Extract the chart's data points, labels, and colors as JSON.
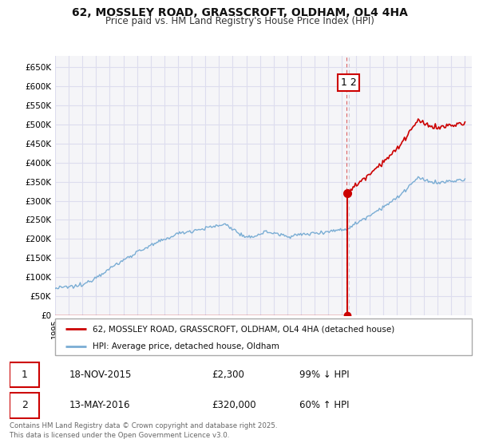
{
  "title": "62, MOSSLEY ROAD, GRASSCROFT, OLDHAM, OL4 4HA",
  "subtitle": "Price paid vs. HM Land Registry's House Price Index (HPI)",
  "hpi_color": "#7aadd4",
  "price_color": "#cc0000",
  "marker_color": "#cc0000",
  "bg_color": "#f5f5f8",
  "grid_color": "#ddddee",
  "ylim": [
    0,
    680000
  ],
  "yticks": [
    0,
    50000,
    100000,
    150000,
    200000,
    250000,
    300000,
    350000,
    400000,
    450000,
    500000,
    550000,
    600000,
    650000
  ],
  "transaction1_date": "18-NOV-2015",
  "transaction1_price": 2300,
  "transaction1_hpi": "99% ↓ HPI",
  "transaction2_date": "13-MAY-2016",
  "transaction2_price": 320000,
  "transaction2_hpi": "60% ↑ HPI",
  "legend_line1": "62, MOSSLEY ROAD, GRASSCROFT, OLDHAM, OL4 4HA (detached house)",
  "legend_line2": "HPI: Average price, detached house, Oldham",
  "footer": "Contains HM Land Registry data © Crown copyright and database right 2025.\nThis data is licensed under the Open Government Licence v3.0.",
  "purchase_date": 2016.37,
  "purchase_price": 320000,
  "xmin": 1995,
  "xmax": 2025.5
}
